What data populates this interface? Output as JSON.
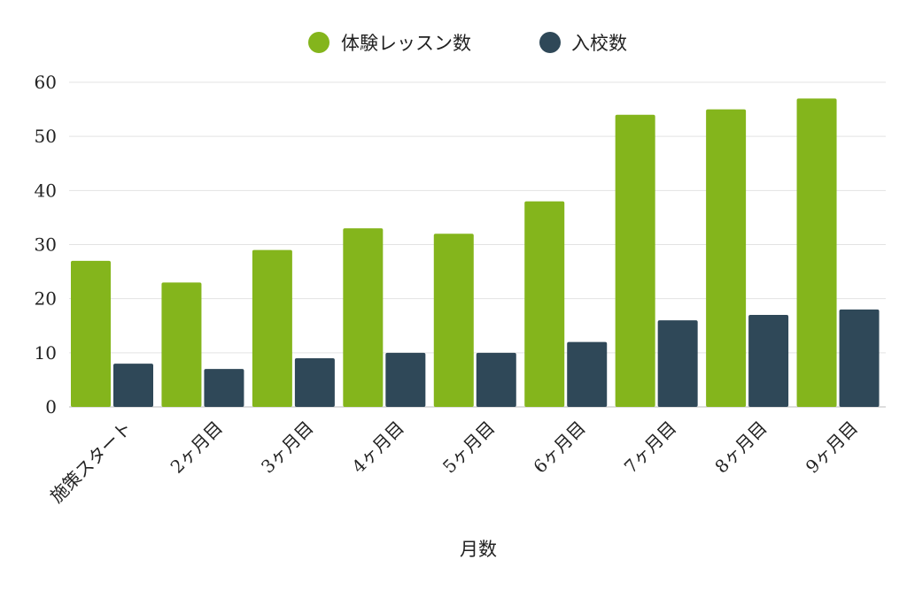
{
  "chart_data": {
    "type": "bar",
    "title": "",
    "xlabel": "月数",
    "ylabel": "",
    "ylim": [
      0,
      60
    ],
    "yticks": [
      0,
      10,
      20,
      30,
      40,
      50,
      60
    ],
    "grid": true,
    "legend_position": "top-center",
    "categories": [
      "施策スタート",
      "2ヶ月目",
      "3ヶ月目",
      "4ヶ月目",
      "5ヶ月目",
      "6ヶ月目",
      "7ヶ月目",
      "8ヶ月目",
      "9ヶ月目"
    ],
    "series": [
      {
        "name": "体験レッスン数",
        "color": "#84b51c",
        "values": [
          27,
          23,
          29,
          33,
          32,
          38,
          54,
          55,
          57
        ]
      },
      {
        "name": "入校数",
        "color": "#2f4858",
        "values": [
          8,
          7,
          9,
          10,
          10,
          12,
          16,
          17,
          18
        ]
      }
    ]
  }
}
